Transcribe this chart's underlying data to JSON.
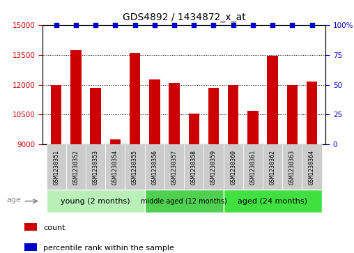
{
  "title": "GDS4892 / 1434872_x_at",
  "samples": [
    "GSM1230351",
    "GSM1230352",
    "GSM1230353",
    "GSM1230354",
    "GSM1230355",
    "GSM1230356",
    "GSM1230357",
    "GSM1230358",
    "GSM1230359",
    "GSM1230360",
    "GSM1230361",
    "GSM1230362",
    "GSM1230363",
    "GSM1230364"
  ],
  "counts": [
    12000,
    13750,
    11850,
    9250,
    13600,
    12250,
    12100,
    10550,
    11850,
    12000,
    10700,
    13450,
    12000,
    12150
  ],
  "percentile_ranks": [
    100,
    100,
    100,
    100,
    100,
    100,
    100,
    100,
    100,
    100,
    100,
    100,
    100,
    100
  ],
  "bar_color": "#cc0000",
  "dot_color": "#0000cc",
  "ylim_left": [
    9000,
    15000
  ],
  "ylim_right": [
    0,
    100
  ],
  "yticks_left": [
    9000,
    10500,
    12000,
    13500,
    15000
  ],
  "yticks_right": [
    0,
    25,
    50,
    75,
    100
  ],
  "groups": [
    {
      "label": "young (2 months)",
      "start": 0,
      "end": 5,
      "color": "#b8f0b8"
    },
    {
      "label": "middle aged (12 months)",
      "start": 5,
      "end": 9,
      "color": "#50d050"
    },
    {
      "label": "aged (24 months)",
      "start": 9,
      "end": 14,
      "color": "#40e040"
    }
  ],
  "legend_count_label": "count",
  "legend_pct_label": "percentile rank within the sample",
  "age_label": "age",
  "tick_label_color_left": "#cc0000",
  "tick_label_color_right": "#0000cc",
  "title_fontsize": 10,
  "bar_width": 0.55
}
